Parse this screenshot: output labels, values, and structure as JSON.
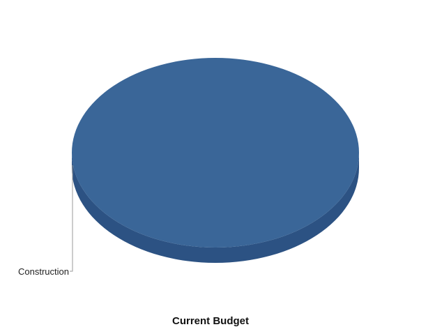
{
  "chart_data": {
    "type": "pie",
    "title": "Current Budget",
    "categories": [
      "Construction"
    ],
    "values": [
      100
    ],
    "colors": {
      "slice_top": "#3a6698",
      "slice_side": "#2c5283",
      "leader_line": "#9a9a9a"
    },
    "legend": "none"
  }
}
